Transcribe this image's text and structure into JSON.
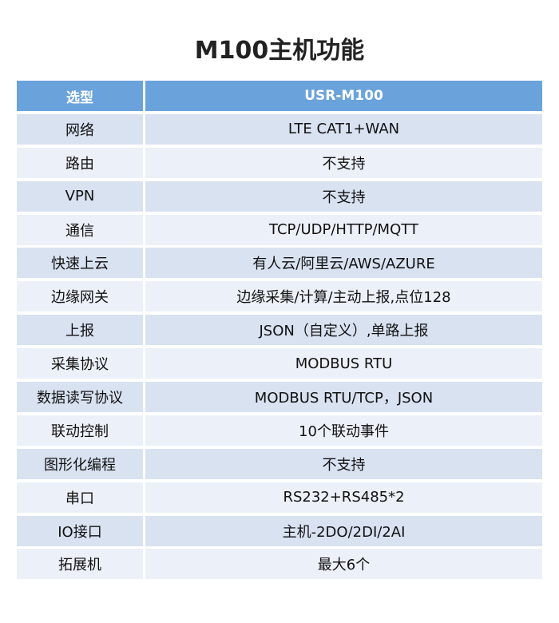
{
  "title": "M100主机功能",
  "header": {
    "label": "选型",
    "value": "USR-M100"
  },
  "rows": [
    {
      "label": "网络",
      "value": "LTE CAT1+WAN"
    },
    {
      "label": "路由",
      "value": "不支持"
    },
    {
      "label": "VPN",
      "value": "不支持"
    },
    {
      "label": "通信",
      "value": "TCP/UDP/HTTP/MQTT"
    },
    {
      "label": "快速上云",
      "value": "有人云/阿里云/AWS/AZURE"
    },
    {
      "label": "边缘网关",
      "value": "边缘采集/计算/主动上报,点位128"
    },
    {
      "label": "上报",
      "value": "JSON（自定义）,单路上报"
    },
    {
      "label": "采集协议",
      "value": "MODBUS RTU"
    },
    {
      "label": "数据读写协议",
      "value": "MODBUS RTU/TCP，JSON"
    },
    {
      "label": "联动控制",
      "value": "10个联动事件"
    },
    {
      "label": "图形化编程",
      "value": "不支持"
    },
    {
      "label": "串口",
      "value": "RS232+RS485*2"
    },
    {
      "label": "IO接口",
      "value": "主机-2DO/2DI/2AI"
    },
    {
      "label": "拓展机",
      "value": "最大6个"
    }
  ],
  "colors": {
    "header": "#6aa3dc",
    "row_dark": "#d9e2f1",
    "row_light": "#ecf0f8"
  }
}
